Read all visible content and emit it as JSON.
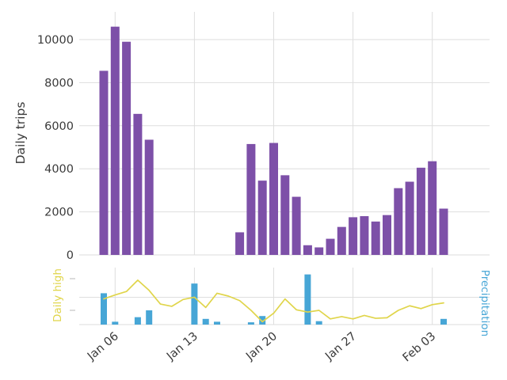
{
  "figure": {
    "background": "#ffffff",
    "grid_color": "#dedede",
    "text_color": "#3a3a3a"
  },
  "x_axis": {
    "tick_labels": [
      "Jan 06",
      "Jan 13",
      "Jan 20",
      "Jan 27",
      "Feb 03"
    ],
    "tick_day_indices": [
      1,
      8,
      15,
      22,
      29
    ],
    "dates": [
      "Jan 05",
      "Jan 06",
      "Jan 07",
      "Jan 08",
      "Jan 09",
      "Jan 10",
      "Jan 11",
      "Jan 12",
      "Jan 13",
      "Jan 14",
      "Jan 15",
      "Jan 16",
      "Jan 17",
      "Jan 18",
      "Jan 19",
      "Jan 20",
      "Jan 21",
      "Jan 22",
      "Jan 23",
      "Jan 24",
      "Jan 25",
      "Jan 26",
      "Jan 27",
      "Jan 28",
      "Jan 29",
      "Jan 30",
      "Jan 31",
      "Feb 01",
      "Feb 02",
      "Feb 03",
      "Feb 04"
    ]
  },
  "chart_data": [
    {
      "type": "bar",
      "name": "daily-trips",
      "panel": "top",
      "ylabel": "Daily trips",
      "color": "#7d50a8",
      "yticks": [
        0,
        2000,
        4000,
        6000,
        8000,
        10000
      ],
      "ylim": [
        0,
        11000
      ],
      "grid": true,
      "values": [
        8550,
        10600,
        9900,
        6550,
        5350,
        null,
        null,
        null,
        null,
        null,
        null,
        null,
        1050,
        5150,
        3450,
        5200,
        3700,
        2700,
        450,
        350,
        750,
        1300,
        1750,
        1800,
        1550,
        1850,
        3100,
        3400,
        4050,
        4350,
        2150
      ]
    },
    {
      "type": "line",
      "name": "daily-high",
      "panel": "bottom",
      "axis_side": "left",
      "ylabel": "Daily high",
      "color": "#e0d54b",
      "value_scale": "percent_of_panel_height",
      "values": [
        45,
        52,
        58,
        78,
        60,
        36,
        32,
        44,
        48,
        30,
        55,
        50,
        42,
        25,
        5,
        20,
        45,
        26,
        22,
        25,
        10,
        14,
        10,
        16,
        11,
        12,
        25,
        33,
        28,
        35,
        38
      ]
    },
    {
      "type": "bar",
      "name": "precipitation",
      "panel": "bottom",
      "axis_side": "right",
      "ylabel": "Precipitation",
      "color": "#47a6d6",
      "value_scale": "percent_of_panel_height",
      "values": [
        55,
        5,
        0,
        13,
        25,
        0,
        0,
        0,
        72,
        10,
        5,
        0,
        0,
        4,
        15,
        0,
        0,
        0,
        88,
        6,
        0,
        0,
        0,
        0,
        0,
        0,
        0,
        0,
        0,
        0,
        10
      ]
    }
  ]
}
